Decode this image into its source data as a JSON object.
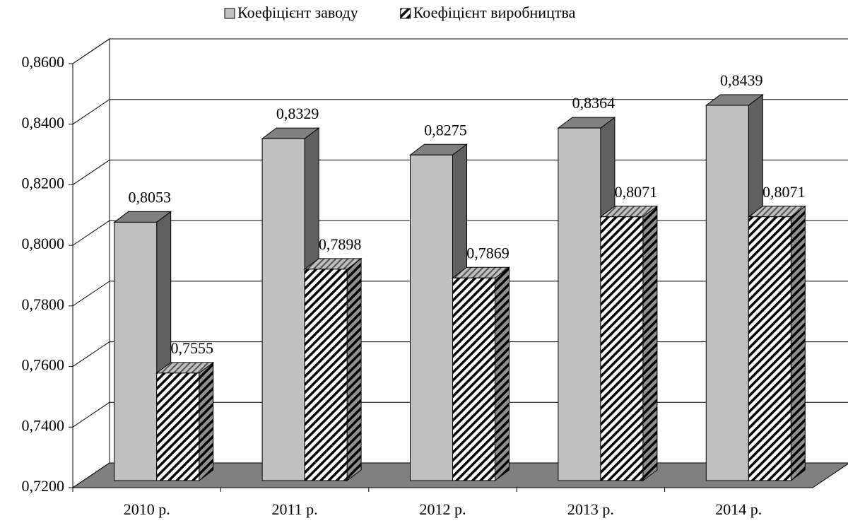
{
  "chart_data": {
    "type": "bar3d",
    "categories": [
      "2010 р.",
      "2011 р.",
      "2012 р.",
      "2013 р.",
      "2014 р."
    ],
    "series": [
      {
        "name": "Коефіцієнт заводу",
        "color": "#c0c0c0",
        "values": [
          0.8053,
          0.8329,
          0.8275,
          0.8364,
          0.8439
        ],
        "value_labels": [
          "0,8053",
          "0,8329",
          "0,8275",
          "0,8364",
          "0,8439"
        ]
      },
      {
        "name": "Коефіцієнт виробництва",
        "color": "#ffffff",
        "pattern": "hatch",
        "values": [
          0.7555,
          0.7898,
          0.7869,
          0.8071,
          0.8071
        ],
        "value_labels": [
          "0,7555",
          "0,7898",
          "0,7869",
          "0,8071",
          "0,8071"
        ]
      }
    ],
    "ylim": [
      0.72,
      0.86
    ],
    "yticks": [
      {
        "value": 0.72,
        "label": "0,7200"
      },
      {
        "value": 0.74,
        "label": "0,7400"
      },
      {
        "value": 0.76,
        "label": "0,7600"
      },
      {
        "value": 0.78,
        "label": "0,7800"
      },
      {
        "value": 0.8,
        "label": "0,8000"
      },
      {
        "value": 0.82,
        "label": "0,8200"
      },
      {
        "value": 0.84,
        "label": "0,8400"
      },
      {
        "value": 0.86,
        "label": "0,8600"
      }
    ],
    "grid": true,
    "legend": "top"
  }
}
